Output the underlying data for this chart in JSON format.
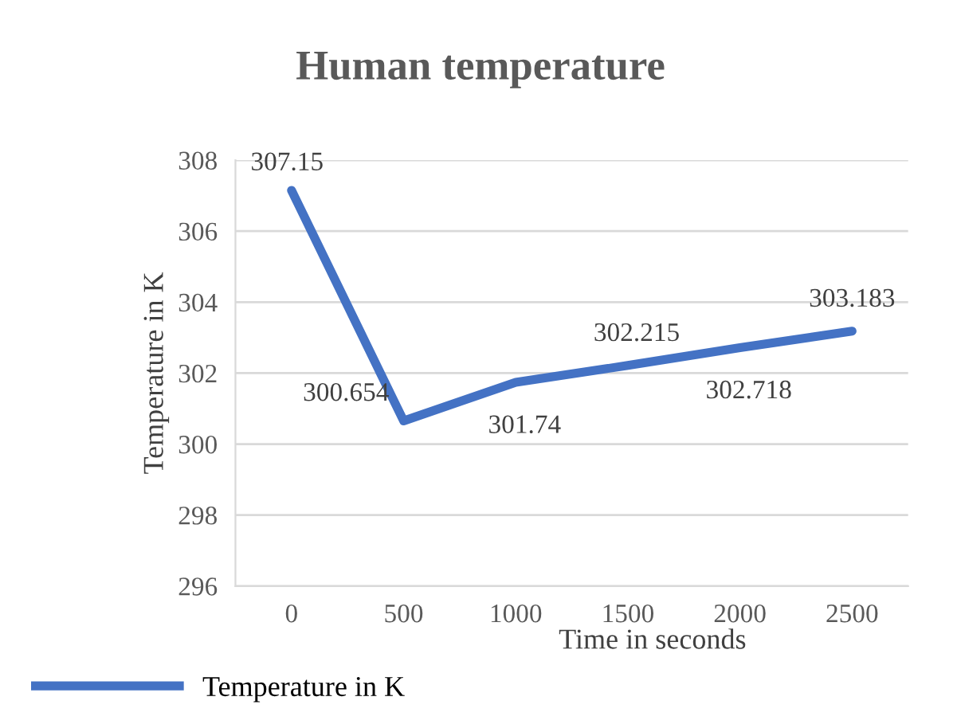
{
  "chart_data": {
    "type": "line",
    "title": "Human temperature",
    "xlabel": "Time in seconds",
    "ylabel": "Temperature in K",
    "categories": [
      "0",
      "500",
      "1000",
      "1500",
      "2000",
      "2500"
    ],
    "series": [
      {
        "name": "Temperature in K",
        "color": "#4472c4",
        "values": [
          307.15,
          300.654,
          301.74,
          302.215,
          302.718,
          303.183
        ]
      }
    ],
    "ylim": [
      296,
      308
    ],
    "yticks": [
      296,
      298,
      300,
      302,
      304,
      306,
      308
    ],
    "grid": "y",
    "legend": "bottom left",
    "data_labels": true,
    "marker": "none",
    "line_style": "solid"
  }
}
